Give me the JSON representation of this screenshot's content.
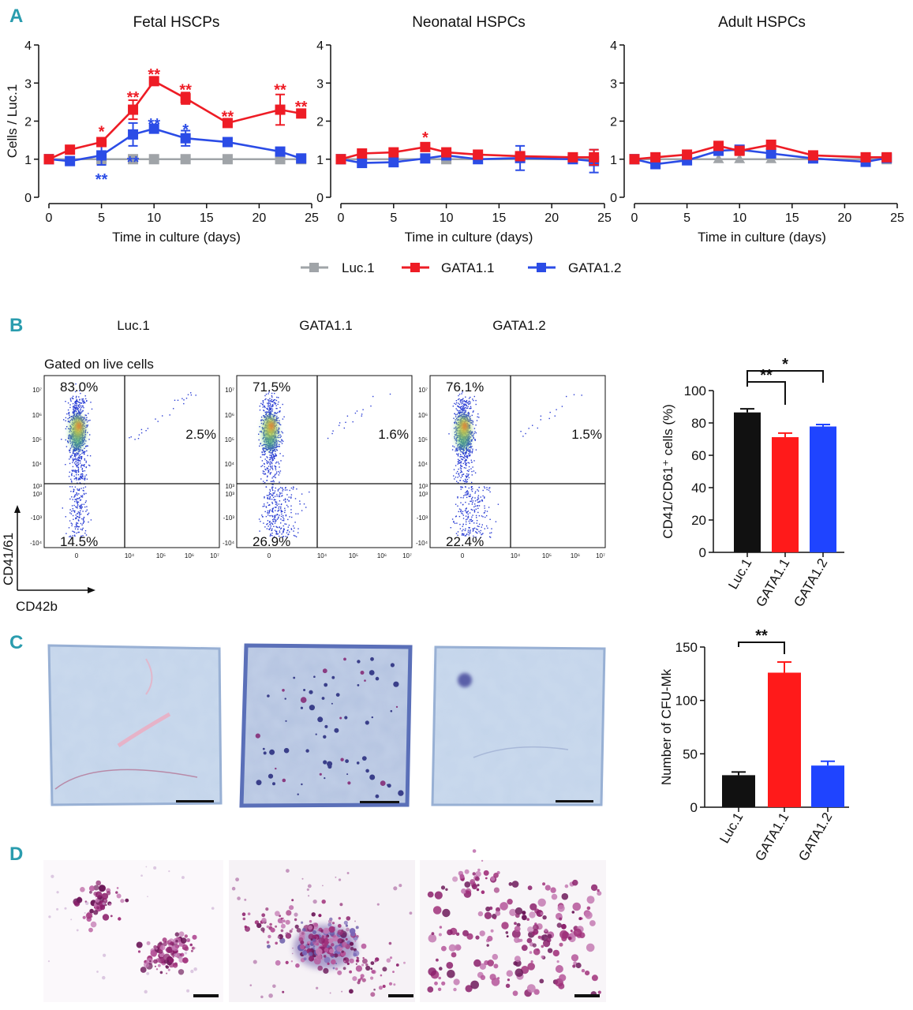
{
  "panels": {
    "a": "A",
    "b": "B",
    "c": "C",
    "d": "D"
  },
  "colors": {
    "luc": "#a0a4a8",
    "gata11": "#ee1c25",
    "gata12": "#2b4ce6",
    "bar_luc": "#111111",
    "bar_g11": "#ff1a1a",
    "bar_g12": "#1f44ff"
  },
  "legend": [
    "Luc.1",
    "GATA1.1",
    "GATA1.2"
  ],
  "flow": {
    "gated_label": "Gated on live cells",
    "ylabel": "CD41/61",
    "xlabel": "CD42b",
    "y_ticks": [
      "10⁷",
      "10⁶",
      "10⁵",
      "10⁴",
      "10³",
      "10³",
      "-10³",
      "-10⁴"
    ],
    "x_ticks": [
      "0",
      "10⁴",
      "10⁵",
      "10⁶",
      "10⁷"
    ],
    "plots": [
      {
        "title": "Luc.1",
        "ul": "83.0%",
        "ur": "2.5%",
        "ll": "14.5%"
      },
      {
        "title": "GATA1.1",
        "ul": "71.5%",
        "ur": "1.6%",
        "ll": "26.9%"
      },
      {
        "title": "GATA1.2",
        "ul": "76.1%",
        "ur": "1.5%",
        "ll": "22.4%"
      }
    ]
  },
  "chart_data": [
    {
      "type": "line",
      "title": "Fetal HSCPs",
      "xlabel": "Time in culture (days)",
      "ylabel": "Cells / Luc.1",
      "xlim": [
        0,
        25
      ],
      "ylim": [
        0,
        4
      ],
      "x_ticks": [
        0,
        5,
        10,
        15,
        20,
        25
      ],
      "y_ticks": [
        0,
        1,
        2,
        3,
        4
      ],
      "series": [
        {
          "name": "Luc.1",
          "x": [
            0,
            5,
            8,
            10,
            13,
            17,
            22,
            24
          ],
          "values": [
            1,
            1,
            1,
            1,
            1,
            1,
            1,
            1
          ],
          "err": [
            0,
            0,
            0,
            0,
            0,
            0,
            0,
            0
          ]
        },
        {
          "name": "GATA1.1",
          "x": [
            0,
            2,
            5,
            8,
            10,
            13,
            17,
            22,
            24
          ],
          "values": [
            1,
            1.25,
            1.45,
            2.3,
            3.05,
            2.6,
            1.95,
            2.3,
            2.2
          ],
          "err": [
            0,
            0.05,
            0.1,
            0.25,
            0.1,
            0.15,
            0.05,
            0.4,
            0.05
          ]
        },
        {
          "name": "GATA1.2",
          "x": [
            0,
            2,
            5,
            8,
            10,
            13,
            17,
            22,
            24
          ],
          "values": [
            1,
            0.95,
            1.1,
            1.65,
            1.8,
            1.55,
            1.45,
            1.2,
            1.02
          ],
          "err": [
            0,
            0.05,
            0.25,
            0.3,
            0.08,
            0.2,
            0.1,
            0.05,
            0.03
          ]
        }
      ],
      "annotations": [
        {
          "text": "*",
          "x": 5,
          "y": 1.75,
          "color": "gata11"
        },
        {
          "text": "**",
          "x": 8,
          "y": 2.65,
          "color": "gata11"
        },
        {
          "text": "**",
          "x": 10,
          "y": 3.25,
          "color": "gata11"
        },
        {
          "text": "**",
          "x": 13,
          "y": 2.85,
          "color": "gata11"
        },
        {
          "text": "**",
          "x": 17,
          "y": 2.15,
          "color": "gata11"
        },
        {
          "text": "**",
          "x": 22,
          "y": 2.85,
          "color": "gata11"
        },
        {
          "text": "**",
          "x": 24,
          "y": 2.4,
          "color": "gata11"
        },
        {
          "text": "**",
          "x": 5,
          "y": 0.5,
          "color": "gata12"
        },
        {
          "text": "**",
          "x": 8,
          "y": 0.95,
          "color": "gata12"
        },
        {
          "text": "**",
          "x": 10,
          "y": 1.95,
          "color": "gata12"
        },
        {
          "text": "*",
          "x": 13,
          "y": 1.8,
          "color": "gata12"
        }
      ]
    },
    {
      "type": "line",
      "title": "Neonatal HSPCs",
      "xlabel": "Time in culture (days)",
      "ylabel": "",
      "xlim": [
        0,
        25
      ],
      "ylim": [
        0,
        4
      ],
      "x_ticks": [
        0,
        5,
        10,
        15,
        20,
        25
      ],
      "y_ticks": [
        0,
        1,
        2,
        3,
        4
      ],
      "series": [
        {
          "name": "Luc.1",
          "x": [
            0,
            10,
            24
          ],
          "values": [
            1,
            1,
            1
          ],
          "err": [
            0,
            0,
            0
          ]
        },
        {
          "name": "GATA1.1",
          "x": [
            0,
            2,
            5,
            8,
            10,
            13,
            17,
            22,
            24
          ],
          "values": [
            1,
            1.15,
            1.18,
            1.32,
            1.18,
            1.12,
            1.08,
            1.05,
            1.05
          ],
          "err": [
            0,
            0.05,
            0.05,
            0.08,
            0.1,
            0.05,
            0.1,
            0.05,
            0.2
          ]
        },
        {
          "name": "GATA1.2",
          "x": [
            0,
            2,
            5,
            8,
            10,
            13,
            17,
            22,
            24
          ],
          "values": [
            1,
            0.9,
            0.92,
            1.02,
            1.1,
            1.0,
            1.03,
            1.0,
            0.95
          ],
          "err": [
            0,
            0.05,
            0.05,
            0.05,
            0.1,
            0.08,
            0.32,
            0.05,
            0.3
          ]
        }
      ],
      "annotations": [
        {
          "text": "*",
          "x": 8,
          "y": 1.6,
          "color": "gata11"
        }
      ]
    },
    {
      "type": "line",
      "title": "Adult HSPCs",
      "xlabel": "Time in culture (days)",
      "ylabel": "",
      "xlim": [
        0,
        25
      ],
      "ylim": [
        0,
        4
      ],
      "x_ticks": [
        0,
        5,
        10,
        15,
        20,
        25
      ],
      "y_ticks": [
        0,
        1,
        2,
        3,
        4
      ],
      "series": [
        {
          "name": "Luc.1",
          "x": [
            0,
            8,
            10,
            13,
            24
          ],
          "values": [
            1,
            1,
            1,
            1,
            1
          ],
          "err": [
            0,
            0,
            0,
            0,
            0
          ]
        },
        {
          "name": "GATA1.1",
          "x": [
            0,
            2,
            5,
            8,
            10,
            13,
            17,
            22,
            24
          ],
          "values": [
            1,
            1.05,
            1.12,
            1.35,
            1.22,
            1.38,
            1.1,
            1.05,
            1.05
          ],
          "err": [
            0,
            0.03,
            0.03,
            0.05,
            0.05,
            0.05,
            0.03,
            0.03,
            0.03
          ]
        },
        {
          "name": "GATA1.2",
          "x": [
            0,
            2,
            5,
            8,
            10,
            13,
            17,
            22,
            24
          ],
          "values": [
            1,
            0.87,
            0.97,
            1.22,
            1.25,
            1.15,
            1.02,
            0.93,
            1.03
          ],
          "err": [
            0,
            0.03,
            0.03,
            0.05,
            0.1,
            0.05,
            0.03,
            0.03,
            0.03
          ]
        }
      ],
      "annotations": []
    },
    {
      "type": "bar",
      "ylabel": "CD41/CD61⁺ cells (%)",
      "ylim": [
        0,
        100
      ],
      "y_ticks": [
        0,
        20,
        40,
        60,
        80,
        100
      ],
      "categories": [
        "Luc.1",
        "GATA1.1",
        "GATA1.2"
      ],
      "values": [
        86.5,
        71.2,
        77.8
      ],
      "err": [
        2.2,
        2.5,
        1.2
      ],
      "significance": [
        {
          "from": 0,
          "to": 1,
          "text": "**"
        },
        {
          "from": 0,
          "to": 2,
          "text": "*"
        }
      ]
    },
    {
      "type": "bar",
      "ylabel": "Number of CFU-Mk",
      "ylim": [
        0,
        150
      ],
      "y_ticks": [
        0,
        50,
        100,
        150
      ],
      "categories": [
        "Luc.1",
        "GATA1.1",
        "GATA1.2"
      ],
      "values": [
        30,
        126,
        39
      ],
      "err": [
        3,
        10,
        4
      ],
      "significance": [
        {
          "from": 0,
          "to": 1,
          "text": "**"
        }
      ]
    }
  ]
}
